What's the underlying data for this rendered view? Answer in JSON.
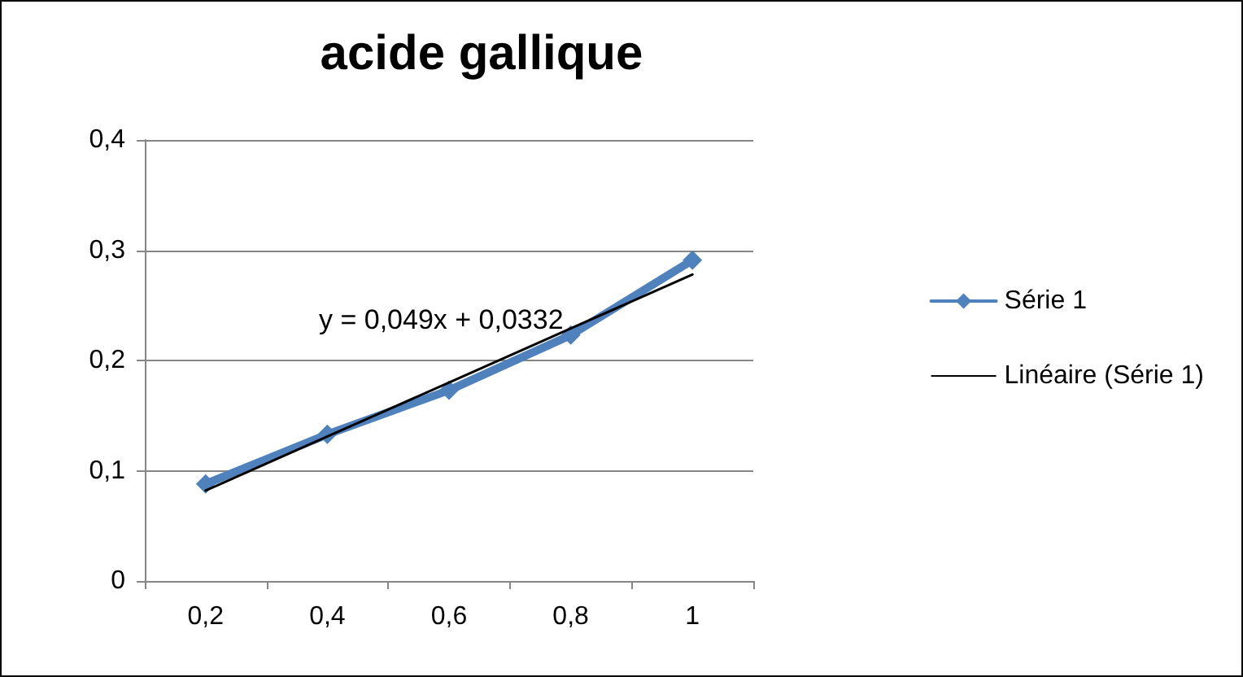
{
  "chart_data": {
    "type": "line",
    "title": "acide gallique",
    "categories": [
      "0,2",
      "0,4",
      "0,6",
      "0,8",
      "1"
    ],
    "series": [
      {
        "name": "Série 1",
        "color": "#4f81bd",
        "values": [
          0.088,
          0.133,
          0.173,
          0.223,
          0.291
        ],
        "marker": "diamond"
      },
      {
        "name": "Linéaire (Série 1)",
        "color": "#000000",
        "values": [
          0.082,
          0.131,
          0.18,
          0.229,
          0.278
        ],
        "marker": "none"
      }
    ],
    "ylim": [
      0,
      0.4
    ],
    "yticks": [
      {
        "value": 0,
        "label": "0"
      },
      {
        "value": 0.1,
        "label": "0,1"
      },
      {
        "value": 0.2,
        "label": "0,2"
      },
      {
        "value": 0.3,
        "label": "0,3"
      },
      {
        "value": 0.4,
        "label": "0,4"
      }
    ],
    "annotations": [
      "y = 0,049x + 0,0332"
    ],
    "grid": "y",
    "legend": "right"
  }
}
